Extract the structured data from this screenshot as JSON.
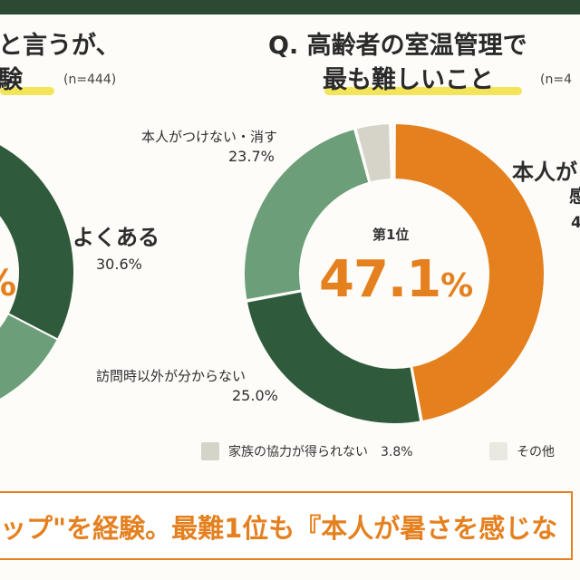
{
  "left": {
    "title_line1": "と言うが、",
    "title_line2": "験",
    "n": "(n=444)",
    "label": "よくある",
    "pct": "30.6%",
    "center_pct_fragment": "%"
  },
  "right": {
    "title_line1": "Q. 高齢者の室温管理で",
    "title_line2": "最も難しいこと",
    "n": "(n=4",
    "center_rank": "第1位",
    "center_value": "47.1",
    "center_unit": "%",
    "labels": {
      "turn_off": "本人がつけない・消す",
      "turn_off_pct": "23.7%",
      "visit": "訪問時以外が分からない",
      "visit_pct": "25.0%",
      "top_line1": "本人が",
      "top_line2": "感",
      "top_pct": "4"
    }
  },
  "legend": [
    {
      "label": "家族の協力が得られない　3.8%",
      "color": "#d6d3c9"
    },
    {
      "label": "その他",
      "color": "#ebe8e1"
    }
  ],
  "bottom_text": "ップ\"を経験。最難1位も『本人が暑さを感じな",
  "colors": {
    "orange": "#e5801f",
    "dark_green": "#2f5a3c",
    "light_green": "#6c9e79",
    "beige": "#d6d3c9",
    "light_beige": "#ebe8e1",
    "topbar": "#2b4a33"
  },
  "chart_data": [
    {
      "type": "pie",
      "categories": [
        "本人が暑さを感じない",
        "訪問時以外が分からない",
        "本人がつけない・消す",
        "家族の協力が得られない",
        "その他"
      ],
      "values": [
        47.1,
        25.0,
        23.7,
        3.8,
        0.4
      ],
      "colors": [
        "#e5801f",
        "#2f5a3c",
        "#6c9e79",
        "#d6d3c9",
        "#ebe8e1"
      ],
      "title": "Q. 高齢者の室温管理で最も難しいこと"
    },
    {
      "type": "pie",
      "categories": [
        "よくある"
      ],
      "values": [
        30.6
      ],
      "colors": [
        "#2f5a3c"
      ]
    }
  ]
}
